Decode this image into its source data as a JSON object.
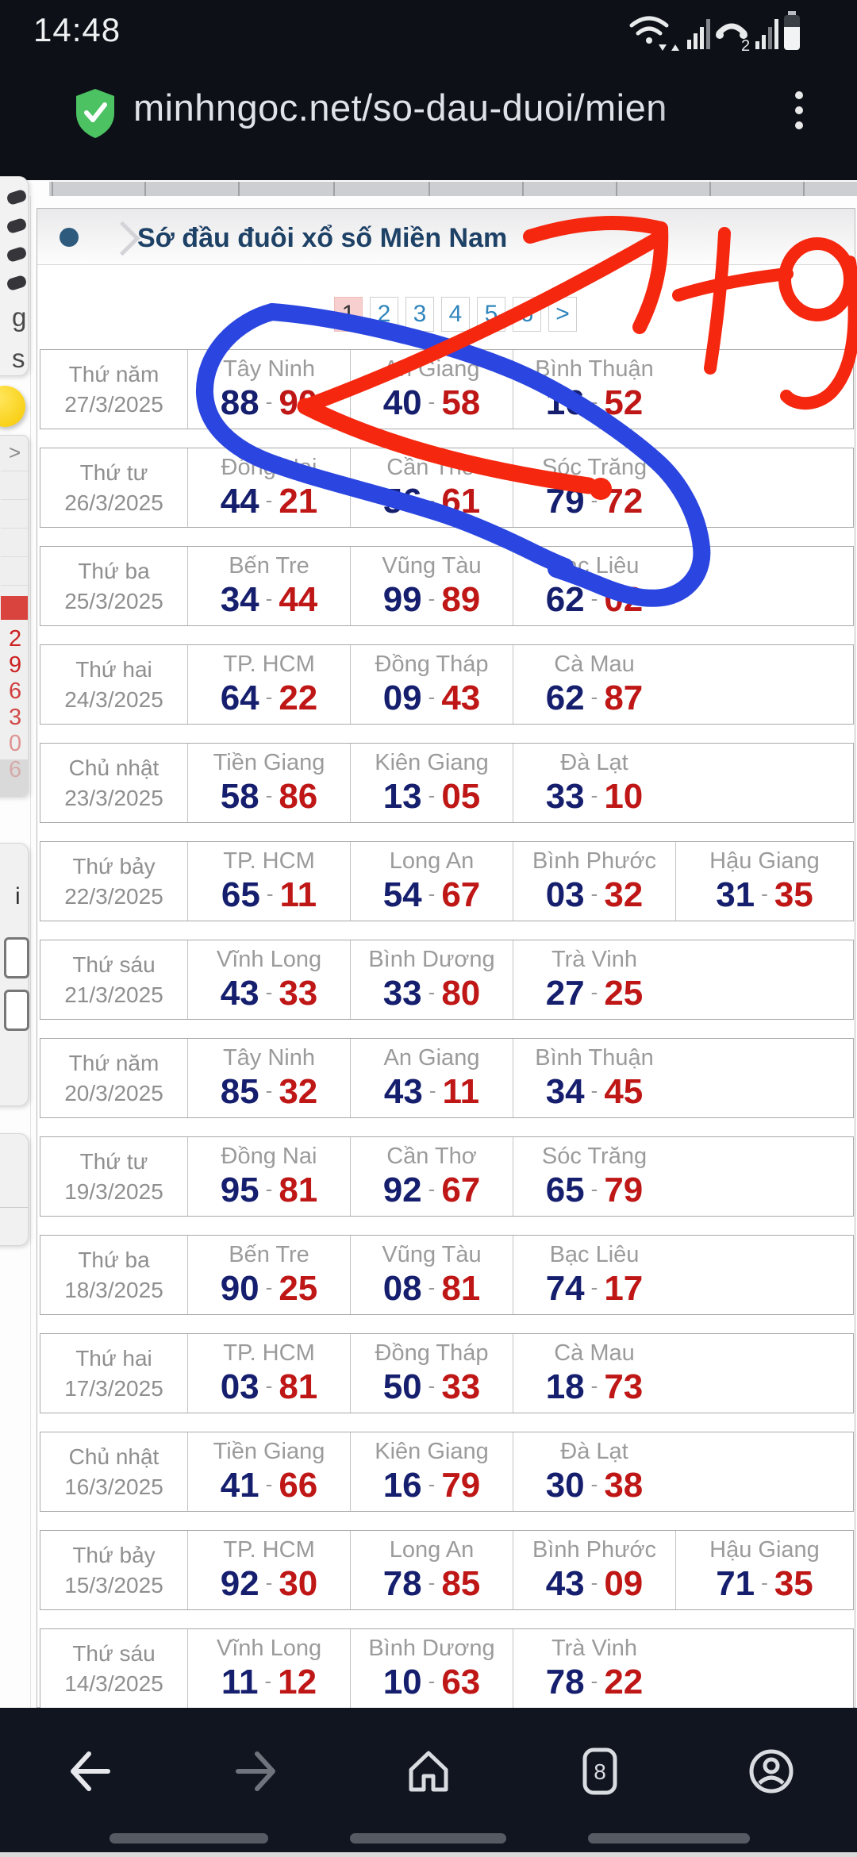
{
  "status_bar": {
    "time": "14:48",
    "icons": [
      "wifi-icon",
      "signal-bars-icon",
      "phone-call-2-icon",
      "signal-bars-icon",
      "battery-icon"
    ]
  },
  "browser": {
    "security_label": "site-secure",
    "url": "minhngoc.net/so-dau-duoi/mien",
    "menu_label": "browser-menu"
  },
  "page": {
    "header": {
      "title": "Sớ đầu đuôi xổ số Miền Nam"
    },
    "pagination": {
      "items": [
        "1",
        "2",
        "3",
        "4",
        "5",
        "6",
        ">"
      ],
      "active": "1"
    },
    "colors": {
      "head_number": "#151f6e",
      "tail_number": "#bf1616",
      "annotation_red": "#f5270f",
      "annotation_blue": "#2b46e0",
      "active_page_bg": "#f8cfcf"
    },
    "results": [
      {
        "weekday": "Thứ năm",
        "date": "27/3/2025",
        "provinces": [
          {
            "name": "Tây Ninh",
            "head": "88",
            "tail": "90"
          },
          {
            "name": "An Giang",
            "head": "40",
            "tail": "58"
          },
          {
            "name": "Bình Thuận",
            "head": "16",
            "tail": "52"
          }
        ]
      },
      {
        "weekday": "Thứ tư",
        "date": "26/3/2025",
        "provinces": [
          {
            "name": "Đồng Nai",
            "head": "44",
            "tail": "21"
          },
          {
            "name": "Cần Thơ",
            "head": "56",
            "tail": "61"
          },
          {
            "name": "Sóc Trăng",
            "head": "79",
            "tail": "72"
          }
        ]
      },
      {
        "weekday": "Thứ ba",
        "date": "25/3/2025",
        "provinces": [
          {
            "name": "Bến Tre",
            "head": "34",
            "tail": "44"
          },
          {
            "name": "Vũng Tàu",
            "head": "99",
            "tail": "89"
          },
          {
            "name": "Bạc Liêu",
            "head": "62",
            "tail": "02"
          }
        ]
      },
      {
        "weekday": "Thứ hai",
        "date": "24/3/2025",
        "provinces": [
          {
            "name": "TP. HCM",
            "head": "64",
            "tail": "22"
          },
          {
            "name": "Đồng Tháp",
            "head": "09",
            "tail": "43"
          },
          {
            "name": "Cà Mau",
            "head": "62",
            "tail": "87"
          }
        ]
      },
      {
        "weekday": "Chủ nhật",
        "date": "23/3/2025",
        "provinces": [
          {
            "name": "Tiền Giang",
            "head": "58",
            "tail": "86"
          },
          {
            "name": "Kiên Giang",
            "head": "13",
            "tail": "05"
          },
          {
            "name": "Đà Lạt",
            "head": "33",
            "tail": "10"
          }
        ]
      },
      {
        "weekday": "Thứ bảy",
        "date": "22/3/2025",
        "provinces": [
          {
            "name": "TP. HCM",
            "head": "65",
            "tail": "11"
          },
          {
            "name": "Long An",
            "head": "54",
            "tail": "67"
          },
          {
            "name": "Bình Phước",
            "head": "03",
            "tail": "32"
          },
          {
            "name": "Hậu Giang",
            "head": "31",
            "tail": "35"
          }
        ]
      },
      {
        "weekday": "Thứ sáu",
        "date": "21/3/2025",
        "provinces": [
          {
            "name": "Vĩnh Long",
            "head": "43",
            "tail": "33"
          },
          {
            "name": "Bình Dương",
            "head": "33",
            "tail": "80"
          },
          {
            "name": "Trà Vinh",
            "head": "27",
            "tail": "25"
          }
        ]
      },
      {
        "weekday": "Thứ năm",
        "date": "20/3/2025",
        "provinces": [
          {
            "name": "Tây Ninh",
            "head": "85",
            "tail": "32"
          },
          {
            "name": "An Giang",
            "head": "43",
            "tail": "11"
          },
          {
            "name": "Bình Thuận",
            "head": "34",
            "tail": "45"
          }
        ]
      },
      {
        "weekday": "Thứ tư",
        "date": "19/3/2025",
        "provinces": [
          {
            "name": "Đồng Nai",
            "head": "95",
            "tail": "81"
          },
          {
            "name": "Cần Thơ",
            "head": "92",
            "tail": "67"
          },
          {
            "name": "Sóc Trăng",
            "head": "65",
            "tail": "79"
          }
        ]
      },
      {
        "weekday": "Thứ ba",
        "date": "18/3/2025",
        "provinces": [
          {
            "name": "Bến Tre",
            "head": "90",
            "tail": "25"
          },
          {
            "name": "Vũng Tàu",
            "head": "08",
            "tail": "81"
          },
          {
            "name": "Bạc Liêu",
            "head": "74",
            "tail": "17"
          }
        ]
      },
      {
        "weekday": "Thứ hai",
        "date": "17/3/2025",
        "provinces": [
          {
            "name": "TP. HCM",
            "head": "03",
            "tail": "81"
          },
          {
            "name": "Đồng Tháp",
            "head": "50",
            "tail": "33"
          },
          {
            "name": "Cà Mau",
            "head": "18",
            "tail": "73"
          }
        ]
      },
      {
        "weekday": "Chủ nhật",
        "date": "16/3/2025",
        "provinces": [
          {
            "name": "Tiền Giang",
            "head": "41",
            "tail": "66"
          },
          {
            "name": "Kiên Giang",
            "head": "16",
            "tail": "79"
          },
          {
            "name": "Đà Lạt",
            "head": "30",
            "tail": "38"
          }
        ]
      },
      {
        "weekday": "Thứ bảy",
        "date": "15/3/2025",
        "provinces": [
          {
            "name": "TP. HCM",
            "head": "92",
            "tail": "30"
          },
          {
            "name": "Long An",
            "head": "78",
            "tail": "85"
          },
          {
            "name": "Bình Phước",
            "head": "43",
            "tail": "09"
          },
          {
            "name": "Hậu Giang",
            "head": "71",
            "tail": "35"
          }
        ]
      },
      {
        "weekday": "Thứ sáu",
        "date": "14/3/2025",
        "provinces": [
          {
            "name": "Vĩnh Long",
            "head": "11",
            "tail": "12"
          },
          {
            "name": "Bình Dương",
            "head": "10",
            "tail": "63"
          },
          {
            "name": "Trà Vinh",
            "head": "78",
            "tail": "22"
          }
        ]
      }
    ]
  },
  "left_widgets": {
    "letters": [
      "g",
      "s"
    ],
    "chevron": ">",
    "digits": [
      "2",
      "9",
      "6",
      "3",
      "0",
      "6"
    ],
    "info": "i"
  },
  "nav_bar": {
    "icons": [
      "back-icon",
      "forward-icon",
      "home-icon",
      "tabs-icon",
      "profile-icon"
    ],
    "tab_count": "8"
  },
  "annotations": {
    "handwritten_number": "79"
  }
}
